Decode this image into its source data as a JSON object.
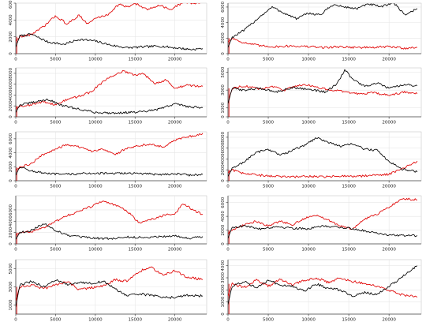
{
  "colors": {
    "series_black": "#000000",
    "series_red": "#e00000",
    "axis": "#444444",
    "grid": "#e6e6e6",
    "baseline_red": "#e00000"
  },
  "chart_data": [
    {
      "panel": "r1c1",
      "type": "line",
      "grid": true,
      "xlim": [
        0,
        24000
      ],
      "ylim": [
        0,
        6000
      ],
      "xticks": [
        0,
        5000,
        10000,
        15000,
        20000
      ],
      "yticks": [
        0,
        2000,
        4000,
        6000
      ],
      "xticklabels": [
        "0",
        "5000",
        "10000",
        "15000",
        "20000"
      ],
      "yticklabels": [
        "0",
        "2000",
        "4000",
        "6000"
      ],
      "series": [
        {
          "color": "black",
          "x": [
            0,
            500,
            2000,
            4000,
            6000,
            8000,
            10000,
            12000,
            14000,
            16000,
            18000,
            20000,
            22000,
            23500
          ],
          "y": [
            800,
            2100,
            2300,
            1400,
            1100,
            1700,
            1500,
            1000,
            700,
            800,
            900,
            700,
            500,
            600
          ]
        },
        {
          "color": "red",
          "x": [
            0,
            500,
            2000,
            3500,
            5000,
            6500,
            8000,
            9000,
            10000,
            11500,
            13000,
            14000,
            15000,
            16500,
            18000,
            19500,
            21000,
            22500,
            23500
          ],
          "y": [
            1500,
            2000,
            2300,
            3200,
            4500,
            3500,
            4600,
            3500,
            4200,
            4600,
            5900,
            5500,
            6000,
            5200,
            5800,
            5200,
            6100,
            6000,
            6200
          ]
        }
      ]
    },
    {
      "panel": "r1c2",
      "type": "line",
      "grid": true,
      "xlim": [
        0,
        24000
      ],
      "ylim": [
        0,
        6500
      ],
      "xticks": [
        0,
        5000,
        10000,
        15000,
        20000
      ],
      "yticks": [
        0,
        2000,
        4000,
        6000
      ],
      "xticklabels": [
        "0",
        "5000",
        "10000",
        "15000",
        "20000"
      ],
      "yticklabels": [
        "0",
        "2000",
        "4000",
        "6000"
      ],
      "series": [
        {
          "color": "black",
          "x": [
            0,
            500,
            2000,
            4000,
            5500,
            7000,
            8500,
            10000,
            11500,
            13000,
            14500,
            16000,
            17500,
            19000,
            20500,
            22000,
            23500
          ],
          "y": [
            800,
            2100,
            3000,
            4800,
            6000,
            5200,
            4500,
            5200,
            5000,
            6300,
            6000,
            5800,
            6400,
            6000,
            6600,
            5000,
            5800
          ]
        },
        {
          "color": "red",
          "x": [
            0,
            500,
            2000,
            4000,
            6000,
            8000,
            10000,
            12000,
            14000,
            16000,
            18000,
            20000,
            22000,
            23500
          ],
          "y": [
            1500,
            2000,
            1400,
            1000,
            900,
            1000,
            900,
            800,
            900,
            800,
            800,
            900,
            700,
            800
          ]
        }
      ]
    },
    {
      "panel": "r2c1",
      "type": "line",
      "grid": true,
      "xlim": [
        0,
        24000
      ],
      "ylim": [
        0,
        9000
      ],
      "xticks": [
        0,
        5000,
        10000,
        15000,
        20000
      ],
      "yticks": [
        0,
        2000,
        4000,
        6000,
        8000
      ],
      "xticklabels": [
        "0",
        "5000",
        "10000",
        "15000",
        "20000"
      ],
      "yticklabels": [
        "0",
        "2000",
        "4000",
        "6000",
        "8000"
      ],
      "series": [
        {
          "color": "black",
          "x": [
            0,
            500,
            2000,
            4000,
            6000,
            8000,
            10000,
            12000,
            14000,
            16000,
            18000,
            20000,
            22000,
            23500
          ],
          "y": [
            800,
            2200,
            2600,
            3200,
            2000,
            1400,
            800,
            700,
            800,
            900,
            1400,
            2400,
            1800,
            1700
          ]
        },
        {
          "color": "red",
          "x": [
            0,
            500,
            2000,
            3500,
            5000,
            6500,
            8000,
            9500,
            11000,
            12500,
            13500,
            15000,
            16000,
            17500,
            19000,
            20000,
            21500,
            23500
          ],
          "y": [
            1500,
            2000,
            2200,
            2800,
            2200,
            3200,
            3800,
            4600,
            6500,
            7800,
            8400,
            7600,
            8000,
            6200,
            6800,
            5200,
            5800,
            5600
          ]
        }
      ]
    },
    {
      "panel": "r2c2",
      "type": "line",
      "grid": true,
      "xlim": [
        0,
        24000
      ],
      "ylim": [
        0,
        5500
      ],
      "xticks": [
        0,
        5000,
        10000,
        15000,
        20000
      ],
      "yticks": [
        0,
        1000,
        3000,
        5000
      ],
      "xticklabels": [
        "0",
        "5000",
        "10000",
        "15000",
        "20000"
      ],
      "yticklabels": [
        "0",
        "1000",
        "3000",
        "5000"
      ],
      "series": [
        {
          "color": "black",
          "x": [
            0,
            500,
            2000,
            4000,
            6000,
            8000,
            10000,
            12000,
            13500,
            14500,
            15500,
            17000,
            18500,
            20000,
            22000,
            23500
          ],
          "y": [
            1500,
            3200,
            3000,
            3200,
            2800,
            3300,
            3100,
            2800,
            3600,
            5300,
            4200,
            3400,
            3800,
            3200,
            3600,
            3500
          ]
        },
        {
          "color": "red",
          "x": [
            0,
            500,
            2000,
            4000,
            5500,
            7000,
            8500,
            10000,
            11500,
            13000,
            14500,
            16000,
            18000,
            20000,
            22000,
            23500
          ],
          "y": [
            1500,
            3200,
            3500,
            3100,
            3400,
            3000,
            3500,
            3600,
            3200,
            3000,
            2800,
            2600,
            2700,
            2400,
            2800,
            2600
          ]
        }
      ]
    },
    {
      "panel": "r3c1",
      "type": "line",
      "grid": true,
      "xlim": [
        0,
        24000
      ],
      "ylim": [
        0,
        7000
      ],
      "xticks": [
        0,
        5000,
        10000,
        15000,
        20000
      ],
      "yticks": [
        0,
        2000,
        4000,
        6000
      ],
      "xticklabels": [
        "0",
        "5000",
        "10000",
        "15000",
        "20000"
      ],
      "yticklabels": [
        "0",
        "2000",
        "4000",
        "6000"
      ],
      "series": [
        {
          "color": "black",
          "x": [
            0,
            500,
            2000,
            4000,
            6000,
            8000,
            10000,
            12000,
            14000,
            16000,
            18000,
            20000,
            22000,
            23500
          ],
          "y": [
            800,
            2000,
            1400,
            1000,
            900,
            1000,
            1100,
            1000,
            1100,
            1000,
            900,
            1000,
            800,
            900
          ]
        },
        {
          "color": "red",
          "x": [
            0,
            500,
            2000,
            3500,
            5000,
            6500,
            8000,
            9500,
            11000,
            12500,
            14000,
            15500,
            17000,
            18500,
            20000,
            21500,
            23500
          ],
          "y": [
            1500,
            1900,
            2500,
            3800,
            4500,
            5200,
            4800,
            4200,
            4600,
            3700,
            4700,
            5000,
            5300,
            4800,
            5800,
            6200,
            6800
          ]
        }
      ]
    },
    {
      "panel": "r3c2",
      "type": "line",
      "grid": true,
      "xlim": [
        0,
        24000
      ],
      "ylim": [
        0,
        9000
      ],
      "xticks": [
        0,
        5000,
        10000,
        15000,
        20000
      ],
      "yticks": [
        0,
        2000,
        4000,
        6000,
        8000
      ],
      "xticklabels": [
        "0",
        "5000",
        "10000",
        "15000",
        "20000"
      ],
      "yticklabels": [
        "0",
        "2000",
        "4000",
        "6000",
        "8000"
      ],
      "series": [
        {
          "color": "black",
          "x": [
            0,
            500,
            2000,
            3500,
            5000,
            6500,
            8000,
            9500,
            11000,
            12500,
            14000,
            15500,
            17000,
            18500,
            20000,
            21500,
            23500
          ],
          "y": [
            800,
            2200,
            3500,
            5200,
            5800,
            4700,
            5600,
            6500,
            7900,
            7100,
            6300,
            6800,
            5800,
            5600,
            3600,
            2200,
            1600
          ]
        },
        {
          "color": "red",
          "x": [
            0,
            500,
            2000,
            4000,
            6000,
            8000,
            10000,
            12000,
            14000,
            16000,
            18000,
            20000,
            22000,
            23500
          ],
          "y": [
            1500,
            2000,
            1300,
            1000,
            800,
            700,
            800,
            700,
            900,
            800,
            1000,
            1200,
            2500,
            3600
          ]
        }
      ]
    },
    {
      "panel": "r4c1",
      "type": "line",
      "grid": true,
      "xlim": [
        0,
        24000
      ],
      "ylim": [
        0,
        8500
      ],
      "xticks": [
        0,
        5000,
        10000,
        15000,
        20000
      ],
      "yticks": [
        0,
        2000,
        4000,
        6000
      ],
      "xticklabels": [
        "0",
        "5000",
        "10000",
        "15000",
        "20000"
      ],
      "yticklabels": [
        "0",
        "2000",
        "4000",
        "6000"
      ],
      "series": [
        {
          "color": "black",
          "x": [
            0,
            500,
            2000,
            3500,
            5000,
            6500,
            8000,
            10000,
            12000,
            14000,
            16000,
            18000,
            20000,
            22000,
            23500
          ],
          "y": [
            800,
            2000,
            2400,
            3600,
            2400,
            1500,
            1200,
            1000,
            900,
            1200,
            1100,
            1300,
            1400,
            1000,
            1300
          ]
        },
        {
          "color": "red",
          "x": [
            0,
            500,
            2000,
            3500,
            5000,
            6500,
            8000,
            9500,
            11000,
            12500,
            14000,
            15500,
            17000,
            18500,
            20000,
            21000,
            22500,
            23500
          ],
          "y": [
            1500,
            2000,
            2200,
            2800,
            4000,
            5000,
            5800,
            6600,
            7600,
            6800,
            5800,
            3700,
            4300,
            5000,
            5300,
            7100,
            5800,
            5200
          ]
        }
      ]
    },
    {
      "panel": "r4c2",
      "type": "line",
      "grid": true,
      "xlim": [
        0,
        24000
      ],
      "ylim": [
        0,
        7000
      ],
      "xticks": [
        0,
        5000,
        10000,
        15000,
        20000
      ],
      "yticks": [
        0,
        2000,
        4000,
        6000
      ],
      "xticklabels": [
        "0",
        "5000",
        "10000",
        "15000",
        "20000"
      ],
      "yticklabels": [
        "0",
        "2000",
        "4000",
        "6000"
      ],
      "series": [
        {
          "color": "black",
          "x": [
            0,
            500,
            2000,
            4000,
            6000,
            8000,
            10000,
            12000,
            14000,
            16000,
            18000,
            20000,
            22000,
            23500
          ],
          "y": [
            800,
            2400,
            2600,
            2200,
            2500,
            2300,
            2200,
            2600,
            2400,
            2100,
            1700,
            1300,
            1200,
            1200
          ]
        },
        {
          "color": "red",
          "x": [
            0,
            500,
            2000,
            3500,
            5000,
            6500,
            8000,
            9500,
            11000,
            12500,
            14000,
            15500,
            17000,
            18500,
            20000,
            21500,
            23500
          ],
          "y": [
            1500,
            2000,
            2800,
            3300,
            2600,
            3300,
            2800,
            3700,
            4200,
            3400,
            2600,
            2200,
            3600,
            4300,
            5300,
            6600,
            6400
          ]
        }
      ]
    },
    {
      "panel": "r5c1",
      "type": "line",
      "grid": true,
      "xlim": [
        0,
        24000
      ],
      "ylim": [
        0,
        6000
      ],
      "xticks": [
        0,
        5000,
        10000,
        15000,
        20000
      ],
      "yticks": [
        1000,
        3000,
        5000
      ],
      "xticklabels": [
        "0",
        "5000",
        "10000",
        "15000",
        "20000"
      ],
      "yticklabels": [
        "1000",
        "3000",
        "5000"
      ],
      "series": [
        {
          "color": "black",
          "x": [
            0,
            500,
            2000,
            3500,
            5000,
            6500,
            8000,
            9500,
            11000,
            12500,
            14000,
            15500,
            17000,
            18500,
            20000,
            21500,
            23500
          ],
          "y": [
            800,
            3200,
            3600,
            3000,
            3800,
            3200,
            3500,
            3400,
            3600,
            2800,
            2000,
            2200,
            2100,
            1900,
            1800,
            2100,
            2000
          ]
        },
        {
          "color": "red",
          "x": [
            0,
            500,
            2000,
            3500,
            5000,
            6500,
            8000,
            9500,
            11000,
            12500,
            14000,
            15500,
            17000,
            18500,
            20000,
            21500,
            23500
          ],
          "y": [
            1500,
            3000,
            3200,
            2800,
            3200,
            3600,
            2700,
            2900,
            3100,
            3800,
            3600,
            4700,
            5200,
            4300,
            4800,
            4100,
            3800
          ]
        }
      ]
    },
    {
      "panel": "r5c2",
      "type": "line",
      "grid": true,
      "xlim": [
        0,
        24000
      ],
      "ylim": [
        0,
        4500
      ],
      "xticks": [
        0,
        5000,
        10000,
        15000,
        20000
      ],
      "yticks": [
        0,
        1000,
        2000,
        3000,
        4000
      ],
      "xticklabels": [
        "0",
        "5000",
        "10000",
        "15000",
        "20000"
      ],
      "yticklabels": [
        "0",
        "1000",
        "2000",
        "3000",
        "4000"
      ],
      "series": [
        {
          "color": "black",
          "x": [
            0,
            500,
            2000,
            3500,
            5000,
            6500,
            8000,
            9500,
            11000,
            12500,
            14000,
            15500,
            17000,
            18500,
            20000,
            21500,
            23500
          ],
          "y": [
            800,
            2300,
            2700,
            2200,
            2800,
            2400,
            2300,
            1900,
            2500,
            2100,
            2000,
            1500,
            1800,
            1600,
            2300,
            3000,
            4000
          ]
        },
        {
          "color": "red",
          "x": [
            0,
            500,
            2000,
            3500,
            5000,
            6500,
            8000,
            9500,
            11000,
            12500,
            14000,
            15500,
            17000,
            18500,
            20000,
            21500,
            23500
          ],
          "y": [
            1500,
            2500,
            2200,
            2800,
            2300,
            2900,
            2400,
            2800,
            3000,
            2600,
            3000,
            2700,
            2500,
            2300,
            2000,
            1600,
            1400
          ]
        }
      ]
    }
  ]
}
